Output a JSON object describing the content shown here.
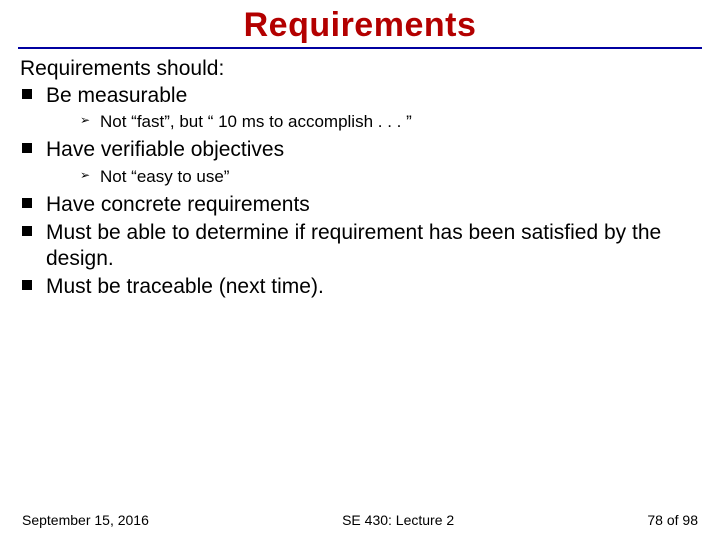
{
  "colors": {
    "title": "#b30000",
    "rule": "#0000a0",
    "bullet_square": "#000000",
    "sub_arrow": "#000000",
    "text": "#000000",
    "background": "#ffffff"
  },
  "typography": {
    "title_fontsize": 34,
    "lead_fontsize": 21,
    "bullet_fontsize": 21,
    "sub_fontsize": 17,
    "footer_fontsize": 14
  },
  "title": "Requirements",
  "lead": "Requirements should:",
  "bullets": [
    {
      "text": "Be measurable",
      "sub": [
        "Not “fast”, but “ 10 ms to accomplish . . . ”"
      ]
    },
    {
      "text": "Have verifiable objectives",
      "sub": [
        "Not “easy to use”"
      ]
    },
    {
      "text": "Have concrete requirements"
    },
    {
      "text": "Must be able to determine if requirement has been satisfied by the design."
    },
    {
      "text": "Must be traceable (next time)."
    }
  ],
  "footer": {
    "left": "September 15, 2016",
    "center": "SE 430: Lecture 2",
    "right_prefix": "78",
    "right_suffix": " of 98"
  }
}
